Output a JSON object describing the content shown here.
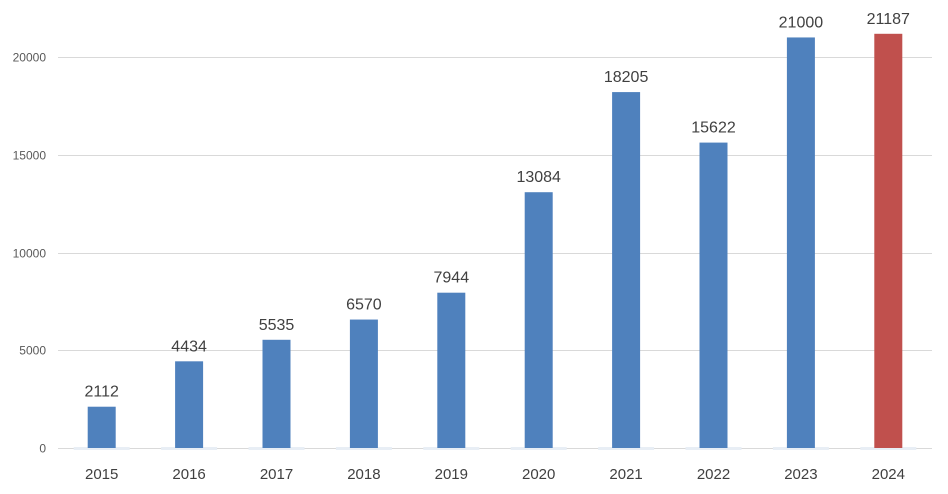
{
  "chart_data": {
    "type": "bar",
    "categories": [
      "2015",
      "2016",
      "2017",
      "2018",
      "2019",
      "2020",
      "2021",
      "2022",
      "2023",
      "2024"
    ],
    "values": [
      2112,
      4434,
      5535,
      6570,
      7944,
      13084,
      18205,
      15622,
      21000,
      21187
    ],
    "data_labels": [
      "2112",
      "4434",
      "5535",
      "6570",
      "7944",
      "13084",
      "18205",
      "15622",
      "21000",
      "21187"
    ],
    "yticks": [
      0,
      5000,
      10000,
      15000,
      20000
    ],
    "ytick_labels": [
      "0",
      "5000",
      "10000",
      "15000",
      "20000"
    ],
    "ylim": [
      0,
      23000
    ],
    "grid": true,
    "legend": "none",
    "colors": {
      "default": "#4f81bd",
      "highlight": "#c0504d",
      "highlight_category": "2024"
    }
  }
}
